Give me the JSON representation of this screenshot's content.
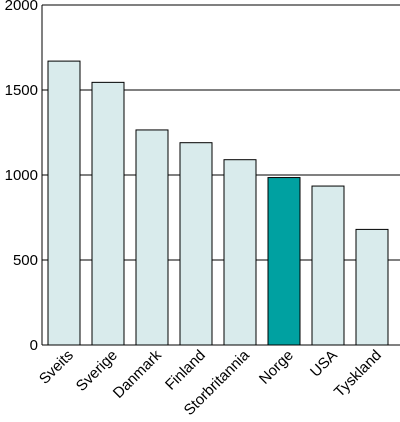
{
  "chart_data": {
    "type": "bar",
    "title": "",
    "xlabel": "",
    "ylabel": "",
    "categories": [
      "Sveits",
      "Sverige",
      "Danmark",
      "Finland",
      "Storbritannia",
      "Norge",
      "USA",
      "Tyskland"
    ],
    "values": [
      1670,
      1545,
      1265,
      1190,
      1090,
      985,
      935,
      680
    ],
    "highlight_category": "Norge",
    "ylim": [
      0,
      2000
    ],
    "yticks": [
      0,
      500,
      1000,
      1500,
      2000
    ],
    "ytick_labels": [
      "0",
      "500",
      "1000",
      "1500",
      "2000"
    ],
    "grid": true,
    "legend": "none",
    "colors": {
      "bar": "#d9ebec",
      "bar_highlight": "#00a1a1",
      "bar_edge": "#000000",
      "grid": "#000000"
    }
  }
}
